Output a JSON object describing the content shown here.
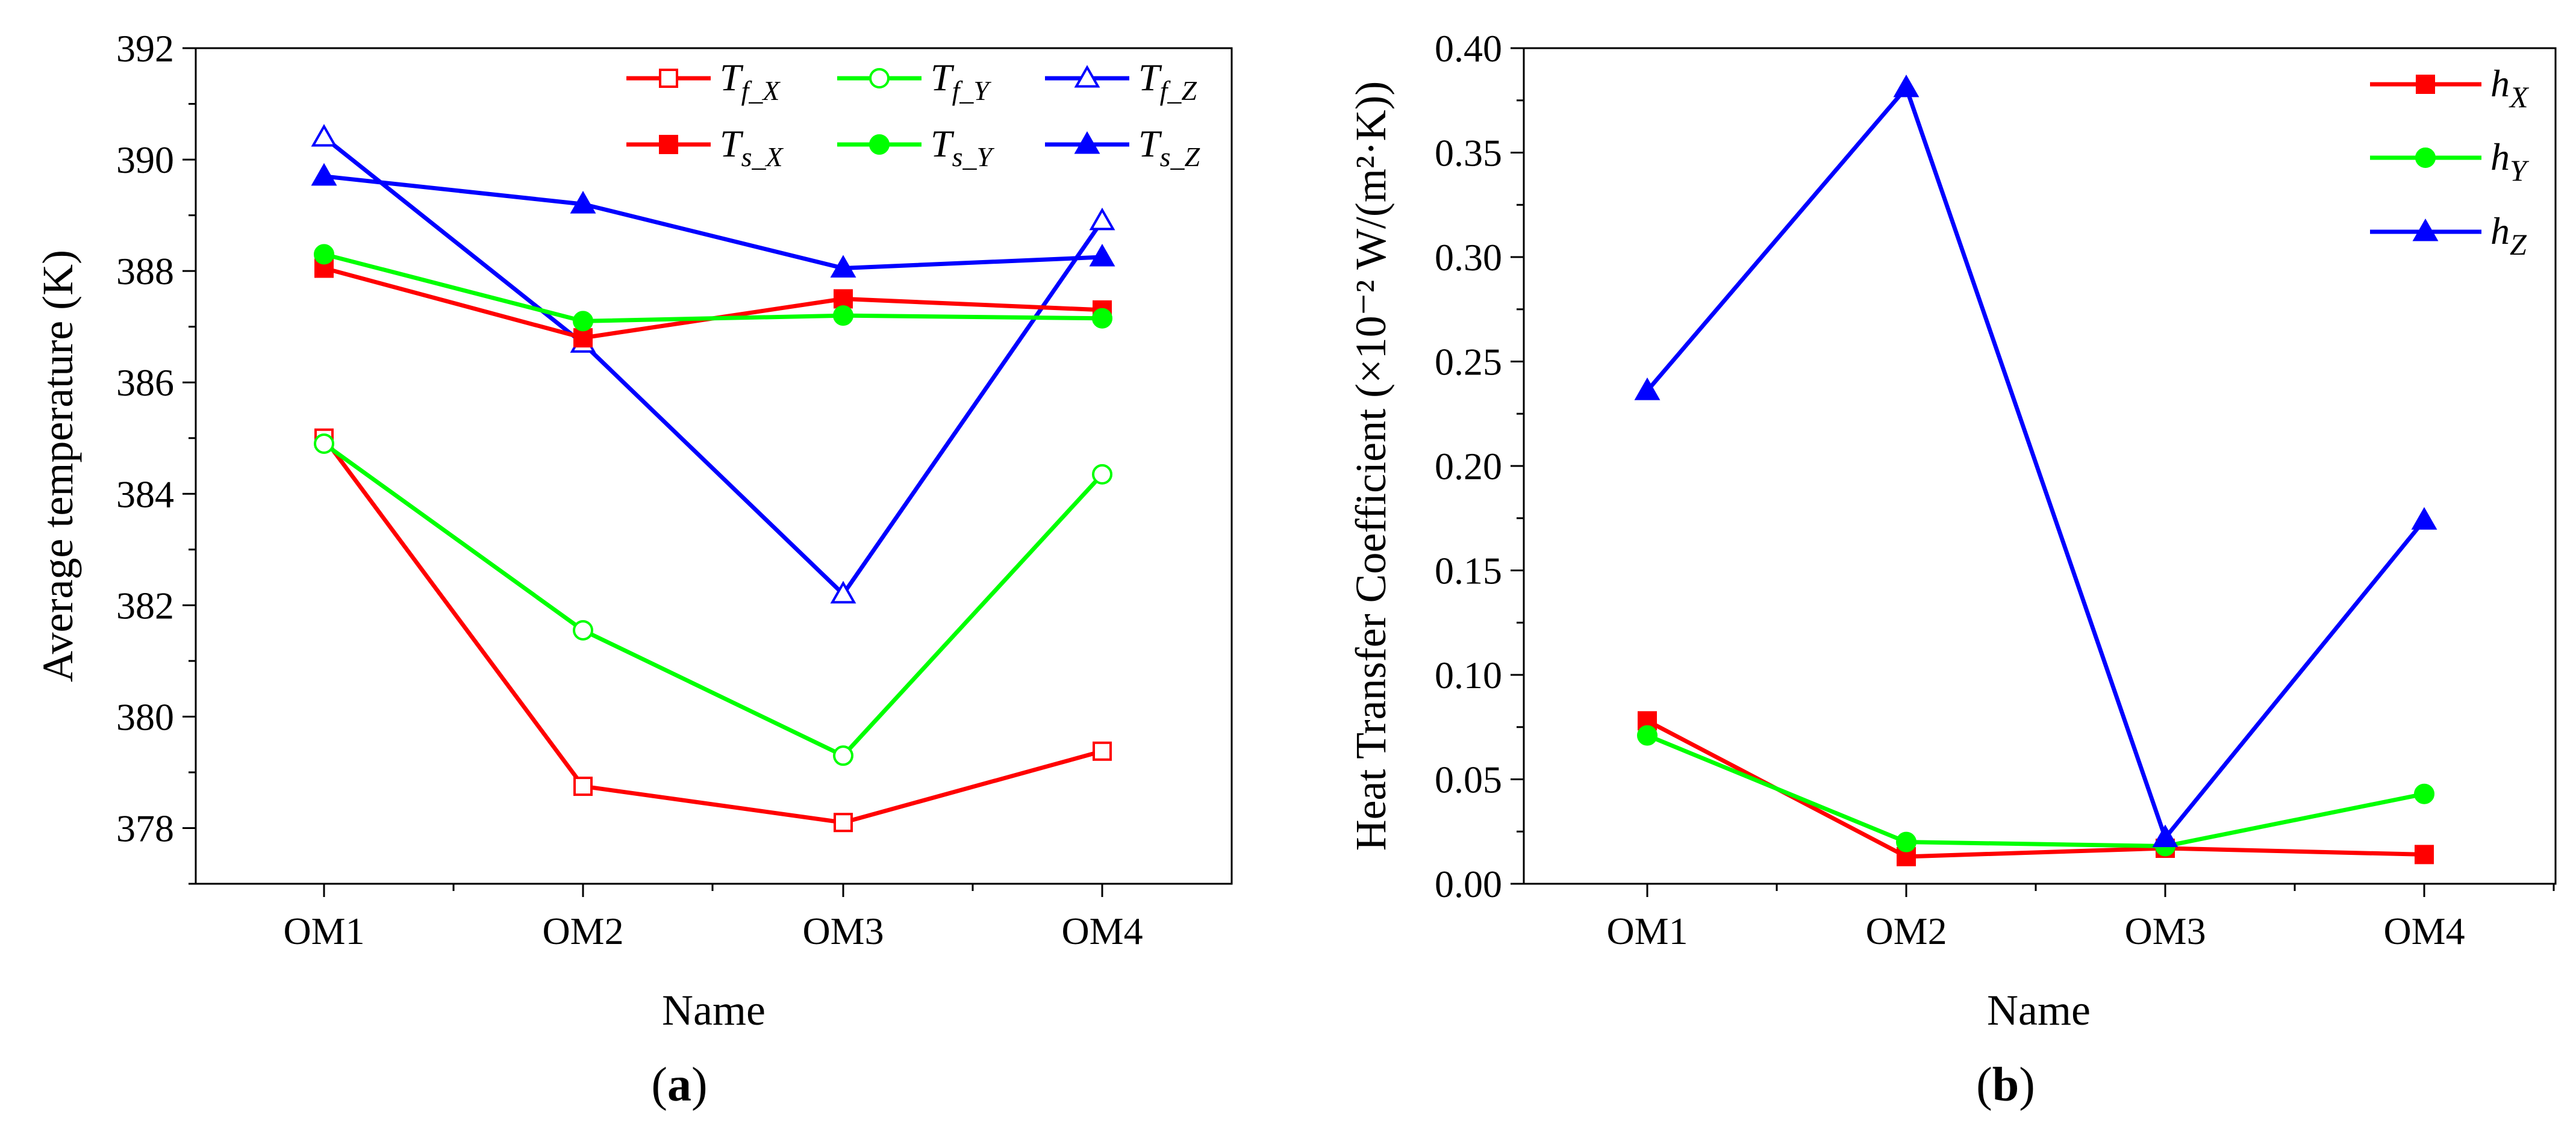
{
  "chart_data": [
    {
      "type": "line",
      "panel_label": "a",
      "categories": [
        "OM1",
        "OM2",
        "OM3",
        "OM4"
      ],
      "xlabel": "Name",
      "ylabel": "Average temperature (K)",
      "ylim": [
        377,
        392
      ],
      "yticks": [
        "378",
        "380",
        "382",
        "384",
        "386",
        "388",
        "390",
        "392"
      ],
      "legend_position": "top-right",
      "series": [
        {
          "name": "T_f_X",
          "main": "T",
          "sub": "f_X",
          "color": "#ff0000",
          "marker": "square",
          "filled": false,
          "values": [
            385.0,
            378.75,
            378.1,
            379.38
          ]
        },
        {
          "name": "T_f_Y",
          "main": "T",
          "sub": "f_Y",
          "color": "#00ff00",
          "marker": "circle",
          "filled": false,
          "values": [
            384.9,
            381.55,
            379.3,
            384.35
          ]
        },
        {
          "name": "T_f_Z",
          "main": "T",
          "sub": "f_Z",
          "color": "#0000ff",
          "marker": "triangle",
          "filled": false,
          "values": [
            390.4,
            386.7,
            382.2,
            388.9
          ]
        },
        {
          "name": "T_s_X",
          "main": "T",
          "sub": "s_X",
          "color": "#ff0000",
          "marker": "square",
          "filled": true,
          "values": [
            388.05,
            386.8,
            387.5,
            387.3
          ]
        },
        {
          "name": "T_s_Y",
          "main": "T",
          "sub": "s_Y",
          "color": "#00ff00",
          "marker": "circle",
          "filled": true,
          "values": [
            388.3,
            387.1,
            387.2,
            387.15
          ]
        },
        {
          "name": "T_s_Z",
          "main": "T",
          "sub": "s_Z",
          "color": "#0000ff",
          "marker": "triangle",
          "filled": true,
          "values": [
            389.7,
            389.2,
            388.05,
            388.25
          ]
        }
      ]
    },
    {
      "type": "line",
      "panel_label": "b",
      "categories": [
        "OM1",
        "OM2",
        "OM3",
        "OM4"
      ],
      "xlabel": "Name",
      "ylabel": "Heat Transfer Coefficient (×10⁻² W/(m²·K))",
      "ylim": [
        0,
        0.4
      ],
      "yticks": [
        "0.00",
        "0.05",
        "0.10",
        "0.15",
        "0.20",
        "0.25",
        "0.30",
        "0.35",
        "0.40"
      ],
      "legend_position": "top-right",
      "series": [
        {
          "name": "h_X",
          "main": "h",
          "sub": "X",
          "color": "#ff0000",
          "marker": "square",
          "filled": true,
          "values": [
            0.078,
            0.013,
            0.017,
            0.014
          ]
        },
        {
          "name": "h_Y",
          "main": "h",
          "sub": "Y",
          "color": "#00ff00",
          "marker": "circle",
          "filled": true,
          "values": [
            0.071,
            0.02,
            0.018,
            0.043
          ]
        },
        {
          "name": "h_Z",
          "main": "h",
          "sub": "Z",
          "color": "#0000ff",
          "marker": "triangle",
          "filled": true,
          "values": [
            0.236,
            0.381,
            0.022,
            0.174
          ]
        }
      ]
    }
  ]
}
